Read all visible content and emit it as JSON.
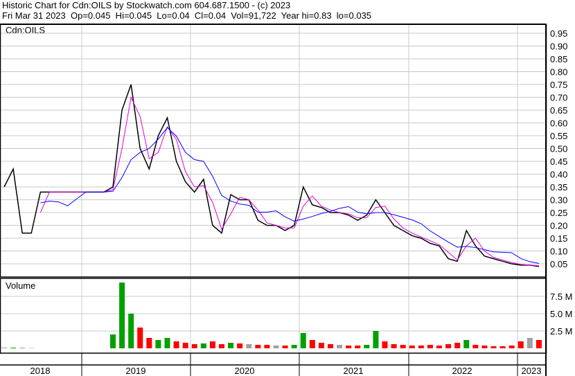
{
  "header": {
    "line1": "Historic Chart for Cdn:OILS by Stockwatch.com 604.687.1500 - (c) 2023",
    "line2": "Fri Mar 31 2023  Op=0.045  Hi=0.045  Lo=0.04  Cl=0.04  Vol=91,722  Year hi=0.83  lo=0.035"
  },
  "chart_data": [
    {
      "type": "line",
      "title": "Cdn:OILS",
      "ylim": [
        0.0,
        0.975
      ],
      "yticks": [
        "0.05",
        "0.10",
        "0.15",
        "0.20",
        "0.25",
        "0.30",
        "0.35",
        "0.40",
        "0.45",
        "0.50",
        "0.55",
        "0.60",
        "0.65",
        "0.70",
        "0.75",
        "0.80",
        "0.85",
        "0.90",
        "0.95"
      ],
      "x": [
        "2018-04",
        "2018-05",
        "2018-06",
        "2018-07",
        "2018-08",
        "2018-09",
        "2018-10",
        "2018-11",
        "2018-12",
        "2019-01",
        "2019-02",
        "2019-03",
        "2019-04",
        "2019-05",
        "2019-06",
        "2019-07",
        "2019-08",
        "2019-09",
        "2019-10",
        "2019-11",
        "2019-12",
        "2020-01",
        "2020-02",
        "2020-03",
        "2020-04",
        "2020-05",
        "2020-06",
        "2020-07",
        "2020-08",
        "2020-09",
        "2020-10",
        "2020-11",
        "2020-12",
        "2021-01",
        "2021-02",
        "2021-03",
        "2021-04",
        "2021-05",
        "2021-06",
        "2021-07",
        "2021-08",
        "2021-09",
        "2021-10",
        "2021-11",
        "2021-12",
        "2022-01",
        "2022-02",
        "2022-03",
        "2022-04",
        "2022-05",
        "2022-06",
        "2022-07",
        "2022-08",
        "2022-09",
        "2022-10",
        "2022-11",
        "2022-12",
        "2023-01",
        "2023-02",
        "2023-03"
      ],
      "close": [
        0.35,
        0.42,
        0.17,
        0.17,
        0.33,
        0.33,
        0.33,
        0.33,
        0.33,
        0.33,
        0.33,
        0.33,
        0.35,
        0.65,
        0.75,
        0.5,
        0.42,
        0.55,
        0.62,
        0.45,
        0.37,
        0.33,
        0.38,
        0.2,
        0.17,
        0.32,
        0.3,
        0.3,
        0.22,
        0.2,
        0.2,
        0.18,
        0.2,
        0.35,
        0.28,
        0.27,
        0.25,
        0.25,
        0.24,
        0.22,
        0.24,
        0.3,
        0.25,
        0.2,
        0.18,
        0.16,
        0.15,
        0.13,
        0.12,
        0.07,
        0.06,
        0.18,
        0.12,
        0.08,
        0.07,
        0.06,
        0.05,
        0.045,
        0.045,
        0.04
      ],
      "colors": {
        "price": "#000000",
        "ma_short": "#e000e0",
        "ma_long": "#0000ff"
      }
    },
    {
      "type": "bar",
      "title": "Volume",
      "ylim": [
        0,
        9.75
      ],
      "yticks": [
        "2.5 M",
        "5.0 M",
        "7.5 M"
      ],
      "values": [
        0.1,
        0.1,
        0.05,
        0.05,
        0,
        0,
        0,
        0,
        0,
        0,
        0,
        0,
        2,
        9.5,
        5,
        3,
        1.5,
        1.2,
        1.5,
        1,
        0.8,
        0.6,
        0.7,
        1,
        0.6,
        0.8,
        0.7,
        0.6,
        0.5,
        0.5,
        0.4,
        0.4,
        0.5,
        2.2,
        1.2,
        0.8,
        0.6,
        0.5,
        0.4,
        0.4,
        0.5,
        2.5,
        1,
        0.6,
        0.5,
        0.4,
        0.4,
        0.5,
        0.4,
        0.6,
        0.8,
        1.2,
        0.5,
        0.4,
        0.3,
        0.3,
        0.4,
        1,
        1.5,
        1.2
      ],
      "colors": {
        "up": "#00a000",
        "down": "#ff0000",
        "flat": "#a0a0a0"
      }
    }
  ],
  "xaxis": {
    "years": [
      "2018",
      "2019",
      "2020",
      "2021",
      "2022",
      "2023"
    ]
  }
}
